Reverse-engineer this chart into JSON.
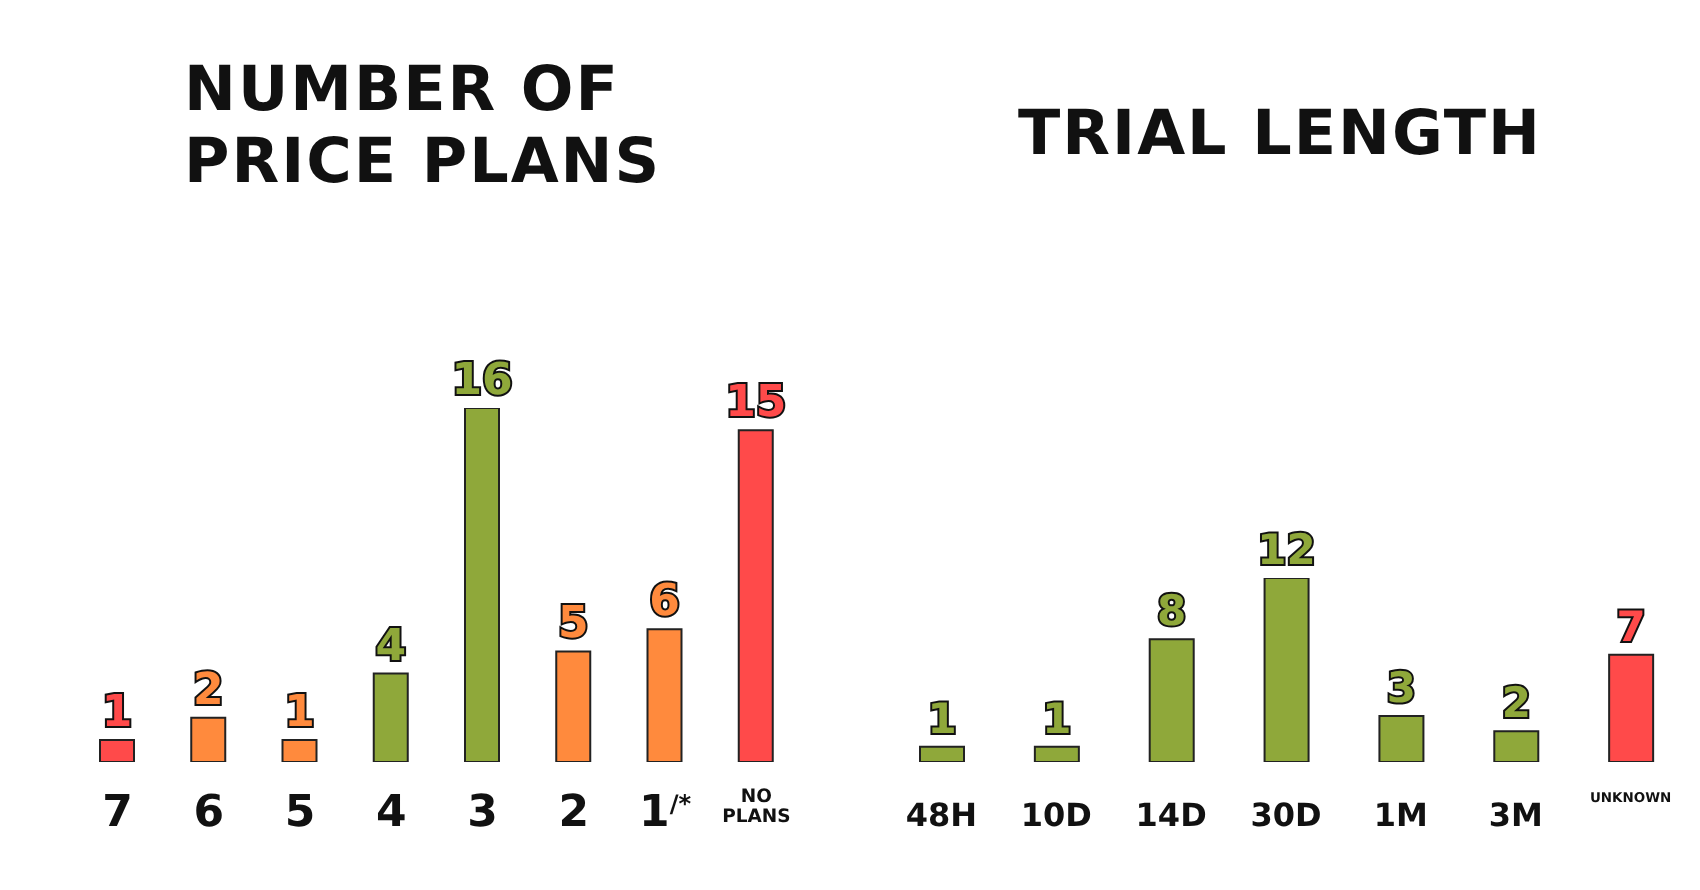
{
  "chart_data": [
    {
      "type": "bar",
      "title": "NUMBER OF\nPRICE PLANS",
      "categories": [
        "7",
        "6",
        "5",
        "4",
        "3",
        "2",
        "1$^{/*}$",
        "NO PLANS"
      ],
      "values": [
        1,
        2,
        1,
        4,
        16,
        5,
        6,
        15
      ],
      "colors": [
        "#ff4a4a",
        "#ff8a3d",
        "#ff8a3d",
        "#8fa83a",
        "#8fa83a",
        "#ff8a3d",
        "#ff8a3d",
        "#ff4a4a"
      ],
      "data_labels": true
    },
    {
      "type": "bar",
      "title": "TRIAL LENGTH",
      "categories": [
        "48H",
        "10D",
        "14D",
        "30D",
        "1M",
        "3M",
        "UNKNOWN"
      ],
      "values": [
        1,
        1,
        8,
        12,
        3,
        2,
        7
      ],
      "colors": [
        "#8fa83a",
        "#8fa83a",
        "#8fa83a",
        "#8fa83a",
        "#8fa83a",
        "#8fa83a",
        "#ff4a4a"
      ],
      "data_labels": true
    }
  ]
}
